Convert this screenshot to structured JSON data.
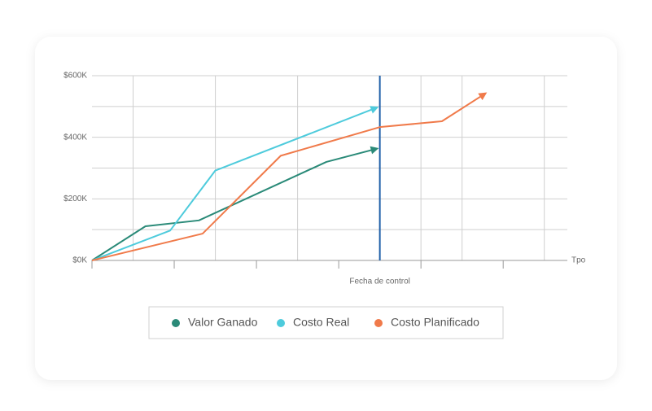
{
  "chart_data": {
    "type": "line",
    "x_label": "Tpo",
    "control_label": "Fecha de control",
    "control_x": 7,
    "xlim": [
      0,
      11.56
    ],
    "xtick_marks": [
      0,
      2,
      4,
      6,
      8,
      10
    ],
    "xgrid": [
      1,
      3,
      5,
      8,
      9,
      11
    ],
    "ylim": [
      0,
      600000
    ],
    "yticks": [
      {
        "value": 0,
        "label": "$0K"
      },
      {
        "value": 200000,
        "label": "$200K"
      },
      {
        "value": 400000,
        "label": "$400K"
      },
      {
        "value": 600000,
        "label": "$600K"
      }
    ],
    "yminor": [
      100000,
      300000,
      500000
    ],
    "grid": true,
    "legend": "bottom",
    "series": [
      {
        "name": "Valor Ganado",
        "color": "#2a8a78",
        "x": [
          0,
          1.3,
          2.6,
          5.7,
          6.9
        ],
        "values": [
          0,
          111000,
          130000,
          320000,
          362000
        ]
      },
      {
        "name": "Costo Real",
        "color": "#4ecbdc",
        "x": [
          0,
          1.9,
          3,
          6.9
        ],
        "values": [
          0,
          97000,
          292000,
          495000
        ]
      },
      {
        "name": "Costo Planificado",
        "color": "#f07a4a",
        "x": [
          0,
          2.69,
          4.59,
          7,
          8.51,
          9.54
        ],
        "values": [
          0,
          87000,
          340000,
          433000,
          452000,
          540000
        ]
      }
    ]
  }
}
